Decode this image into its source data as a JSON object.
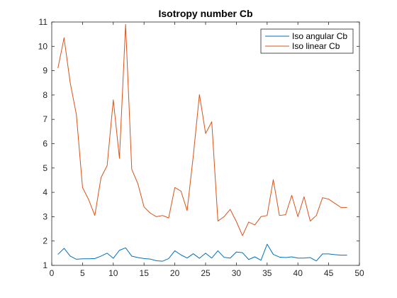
{
  "chart_data": {
    "type": "line",
    "title": "Isotropy number Cb",
    "xlabel": "",
    "ylabel": "",
    "xlim": [
      0,
      50
    ],
    "ylim": [
      1,
      11
    ],
    "xticks": [
      0,
      5,
      10,
      15,
      20,
      25,
      30,
      35,
      40,
      45,
      50
    ],
    "yticks": [
      1,
      2,
      3,
      4,
      5,
      6,
      7,
      8,
      9,
      10,
      11
    ],
    "grid": false,
    "legend_position": "top-right",
    "x": [
      1,
      2,
      3,
      4,
      5,
      6,
      7,
      8,
      9,
      10,
      11,
      12,
      13,
      14,
      15,
      16,
      17,
      18,
      19,
      20,
      21,
      22,
      23,
      24,
      25,
      26,
      27,
      28,
      29,
      30,
      31,
      32,
      33,
      34,
      35,
      36,
      37,
      38,
      39,
      40,
      41,
      42,
      43,
      44,
      45,
      46,
      47,
      48
    ],
    "series": [
      {
        "name": "Iso angular Cb",
        "color": "#0072BD",
        "values": [
          1.45,
          1.7,
          1.38,
          1.25,
          1.27,
          1.27,
          1.28,
          1.38,
          1.5,
          1.29,
          1.62,
          1.72,
          1.38,
          1.32,
          1.28,
          1.26,
          1.19,
          1.17,
          1.28,
          1.6,
          1.43,
          1.3,
          1.48,
          1.29,
          1.5,
          1.3,
          1.6,
          1.33,
          1.3,
          1.55,
          1.52,
          1.24,
          1.35,
          1.21,
          1.87,
          1.45,
          1.34,
          1.32,
          1.35,
          1.3,
          1.3,
          1.32,
          1.18,
          1.47,
          1.47,
          1.44,
          1.42,
          1.42
        ]
      },
      {
        "name": "Iso linear Cb",
        "color": "#D95319",
        "values": [
          9.1,
          10.35,
          8.5,
          7.2,
          4.2,
          3.7,
          3.05,
          4.6,
          5.1,
          7.8,
          5.4,
          10.9,
          4.95,
          4.35,
          3.4,
          3.15,
          3.0,
          3.05,
          2.95,
          4.2,
          4.05,
          3.25,
          5.5,
          8.02,
          6.42,
          6.9,
          2.82,
          3.0,
          3.3,
          2.8,
          2.22,
          2.78,
          2.66,
          3.0,
          3.05,
          4.52,
          3.05,
          3.08,
          3.88,
          3.0,
          3.82,
          2.82,
          3.05,
          3.78,
          3.72,
          3.55,
          3.38,
          3.38
        ]
      }
    ]
  }
}
